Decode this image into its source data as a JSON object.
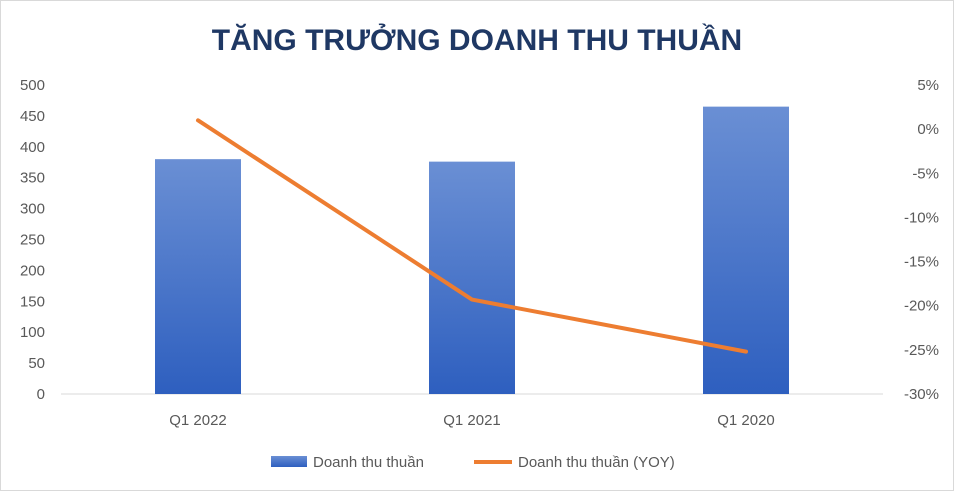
{
  "chart_data": {
    "type": "bar+line",
    "title": "TĂNG TRƯỞNG DOANH THU THUẦN",
    "categories": [
      "Q1 2022",
      "Q1 2021",
      "Q1 2020"
    ],
    "series": [
      {
        "name": "Doanh thu thuần",
        "type": "bar",
        "axis": "left",
        "values": [
          380,
          376,
          465
        ]
      },
      {
        "name": "Doanh thu thuần (YOY)",
        "type": "line",
        "axis": "right",
        "values": [
          1.0,
          -19.3,
          -25.2
        ]
      }
    ],
    "left_axis": {
      "min": 0,
      "max": 500,
      "step": 50,
      "tick_labels": [
        "0",
        "50",
        "100",
        "150",
        "200",
        "250",
        "300",
        "350",
        "400",
        "450",
        "500"
      ]
    },
    "right_axis": {
      "min": -30,
      "max": 5,
      "step": 5,
      "tick_labels": [
        "-30%",
        "-25%",
        "-20%",
        "-15%",
        "-10%",
        "-5%",
        "0%",
        "5%"
      ]
    },
    "grid": false,
    "legend_position": "bottom",
    "colors": {
      "bar_top": "#6a8fd4",
      "bar_bottom": "#2e5fbf",
      "line": "#ed7d31",
      "text": "#595959",
      "title": "#1f3864",
      "axis": "#d9d9d9"
    }
  }
}
